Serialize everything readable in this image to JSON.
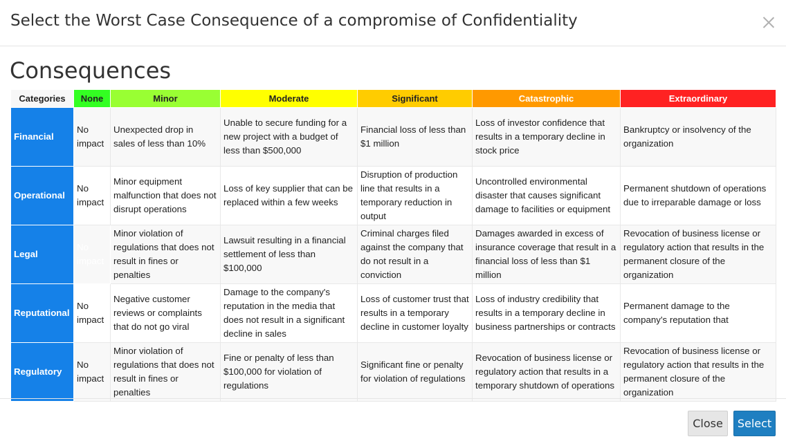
{
  "modal": {
    "title": "Select the Worst Case Consequence of a compromise of Confidentiality",
    "section_title": "Consequences",
    "close_label": "Close",
    "select_label": "Select"
  },
  "colors": {
    "none": "#33ff22",
    "minor": "#99ff33",
    "moderate": "#ffff00",
    "significant": "#ffcc00",
    "catastrophic": "#ff9900",
    "extraordinary": "#ff2222",
    "category": "#1581e8",
    "primary_button": "#1f7fc1"
  },
  "table": {
    "headers": [
      "Categories",
      "None",
      "Minor",
      "Moderate",
      "Significant",
      "Catastrophic",
      "Extraordinary"
    ],
    "rows": [
      {
        "category": "Financial",
        "cells": [
          "No impact",
          "Unexpected drop in sales of less than 10%",
          "Unable to secure funding for a new project with a budget of less than $500,000",
          "Financial loss of less than $1 million",
          "Loss of investor confidence that results in a temporary decline in stock price",
          "Bankruptcy or insolvency of the organization"
        ]
      },
      {
        "category": "Operational",
        "cells": [
          "No impact",
          "Minor equipment malfunction that does not disrupt operations",
          "Loss of key supplier that can be replaced within a few weeks",
          "Disruption of production line that results in a temporary reduction in output",
          "Uncontrolled environmental disaster that causes significant damage to facilities or equipment",
          "Permanent shutdown of operations due to irreparable damage or loss"
        ]
      },
      {
        "category": "Legal",
        "cells": [
          "No impact",
          "Minor violation of regulations that does not result in fines or penalties",
          "Lawsuit resulting in a financial settlement of less than $100,000",
          "Criminal charges filed against the company that do not result in a conviction",
          "Damages awarded in excess of insurance coverage that result in a financial loss of less than $1 million",
          "Revocation of business license or regulatory action that results in the permanent closure of the organization"
        ]
      },
      {
        "category": "Reputational",
        "cells": [
          "No impact",
          "Negative customer reviews or complaints that do not go viral",
          "Damage to the company's reputation in the media that does not result in a significant decline in sales",
          "Loss of customer trust that results in a temporary decline in customer loyalty",
          "Loss of industry credibility that results in a temporary decline in business partnerships or contracts",
          "Permanent damage to the company's reputation that"
        ]
      },
      {
        "category": "Regulatory",
        "cells": [
          "No impact",
          "Minor violation of regulations that does not result in fines or penalties",
          "Fine or penalty of less than $100,000 for violation of regulations",
          "Significant fine or penalty for violation of regulations",
          "Revocation of business license or regulatory action that results in a temporary shutdown of operations",
          "Revocation of business license or regulatory action that results in the permanent closure of the organization"
        ]
      }
    ]
  }
}
